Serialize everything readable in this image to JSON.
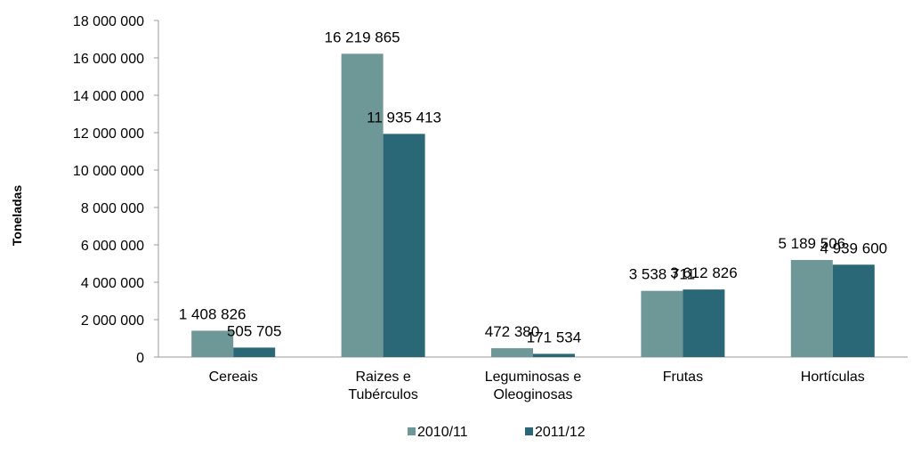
{
  "chart_data": {
    "type": "bar",
    "ylabel": "Toneladas",
    "xlabel": "",
    "title": "",
    "ylim": [
      0,
      18000000
    ],
    "ytick_step": 2000000,
    "yticks": [
      "0",
      "2 000 000",
      "4 000 000",
      "6 000 000",
      "8 000 000",
      "10 000 000",
      "12 000 000",
      "14 000 000",
      "16 000 000",
      "18 000 000"
    ],
    "categories": [
      [
        "Cereais"
      ],
      [
        "Raizes e",
        "Tubérculos"
      ],
      [
        "Leguminosas e",
        "Oleoginosas"
      ],
      [
        "Frutas"
      ],
      [
        "Hortículas"
      ]
    ],
    "series": [
      {
        "name": "2010/11",
        "color": "#6e9797",
        "values": [
          1408826,
          16219865,
          472380,
          3538711,
          5189506
        ],
        "labels": [
          "1 408 826",
          "16 219 865",
          "472 380",
          "3 538 711",
          "5 189 506"
        ]
      },
      {
        "name": "2011/12",
        "color": "#2a6878",
        "values": [
          505705,
          11935413,
          171534,
          3612826,
          4939600
        ],
        "labels": [
          "505 705",
          "11 935 413",
          "171 534",
          "3 612 826",
          "4 939 600"
        ]
      }
    ],
    "grid": false,
    "legend_position": "bottom"
  }
}
